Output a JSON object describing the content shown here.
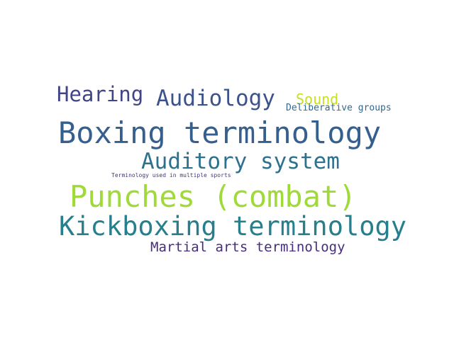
{
  "words": [
    {
      "text": "Hearing",
      "color": "#414487"
    },
    {
      "text": "Audiology",
      "color": "#3b528b"
    },
    {
      "text": "Sound",
      "color": "#c8e020"
    },
    {
      "text": "Deliberative groups",
      "color": "#31688e"
    },
    {
      "text": "Boxing terminology",
      "color": "#355f8d"
    },
    {
      "text": "Auditory system",
      "color": "#2c728e"
    },
    {
      "text": "Terminology used in multiple sports",
      "color": "#46327e"
    },
    {
      "text": "Punches (combat)",
      "color": "#a0da39"
    },
    {
      "text": "Kickboxing terminology",
      "color": "#277f8e"
    },
    {
      "text": "Martial arts terminology",
      "color": "#472d7b"
    }
  ]
}
